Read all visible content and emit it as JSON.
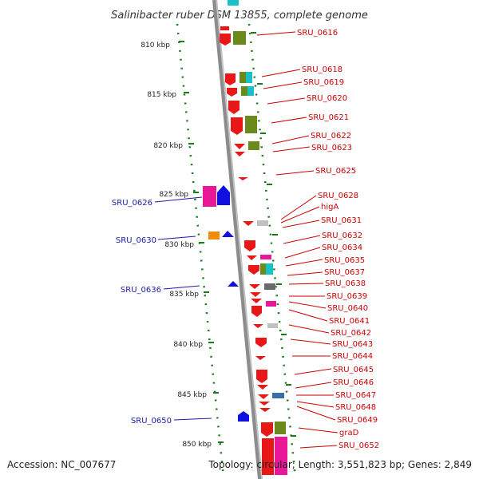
{
  "title": "Salinibacter ruber DSM 13855, complete genome",
  "accession": "Accession: NC_007677",
  "topology": "Topology: circular; Length: 3,551,823 bp; Genes: 2,849",
  "kbp_ticks": [
    "810 kbp",
    "815 kbp",
    "820 kbp",
    "825 kbp",
    "830 kbp",
    "835 kbp",
    "840 kbp",
    "845 kbp",
    "850 kbp"
  ],
  "right_labels": [
    "SRU_0616",
    "SRU_0618",
    "SRU_0619",
    "SRU_0620",
    "SRU_0621",
    "SRU_0622",
    "SRU_0623",
    "SRU_0625",
    "SRU_0628",
    "higA",
    "SRU_0631",
    "SRU_0632",
    "SRU_0634",
    "SRU_0635",
    "SRU_0637",
    "SRU_0638",
    "SRU_0639",
    "SRU_0640",
    "SRU_0641",
    "SRU_0642",
    "SRU_0643",
    "SRU_0644",
    "SRU_0645",
    "SRU_0646",
    "SRU_0647",
    "SRU_0648",
    "SRU_0649",
    "graD",
    "SRU_0652"
  ],
  "left_labels": [
    "SRU_0626",
    "SRU_0630",
    "SRU_0636",
    "SRU_0650"
  ],
  "colors": {
    "forward_gene": "#e81818",
    "reverse_gene": "#1010e0",
    "cog_green": "#6a8a1e",
    "cog_cyan": "#18c0c8",
    "cog_magenta": "#e8189a",
    "cog_orange": "#f08c0c",
    "cog_grey": "#8a8a8a",
    "cog_steel": "#3a6ea8",
    "axis": "#8c8c8c",
    "tick_green": "#1a7a1a"
  }
}
